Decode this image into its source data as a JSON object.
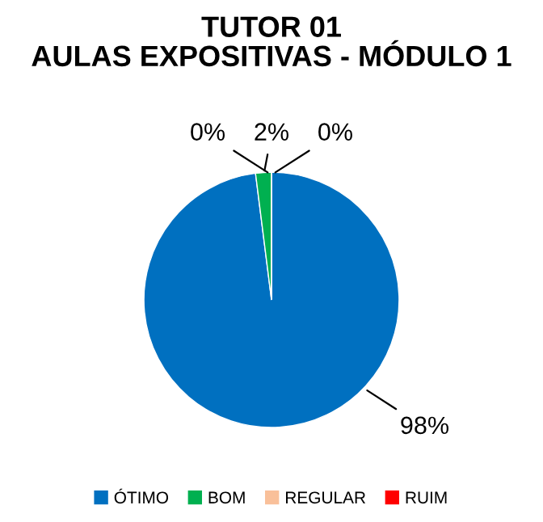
{
  "chart_data": {
    "type": "pie",
    "title": "TUTOR 01\nAULAS EXPOSITIVAS - MÓDULO 1",
    "categories": [
      "ÓTIMO",
      "BOM",
      "REGULAR",
      "RUIM"
    ],
    "values": [
      98,
      2,
      0,
      0
    ],
    "colors": [
      "#0070c0",
      "#00b050",
      "#f9c09a",
      "#ff0000"
    ],
    "value_labels": [
      "98%",
      "2%",
      "0%",
      "0%"
    ],
    "legend": "bottom"
  }
}
